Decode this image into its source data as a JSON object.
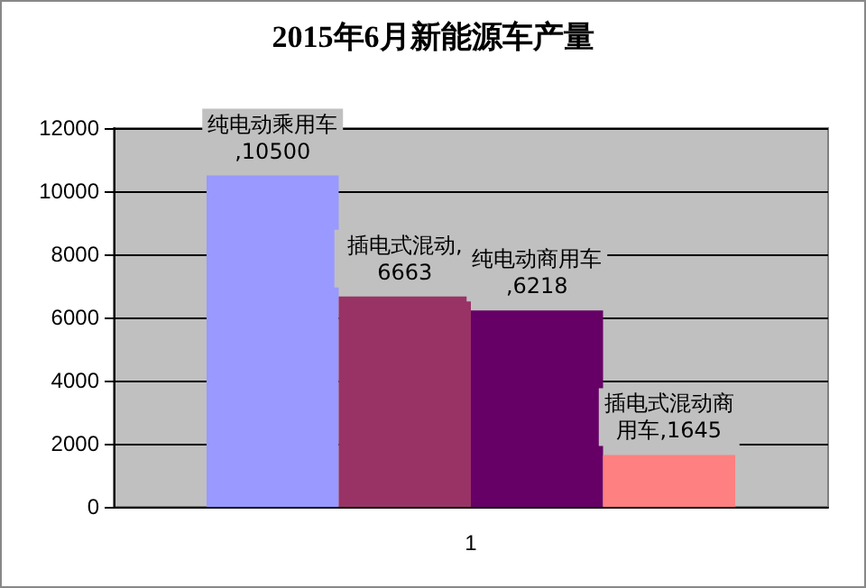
{
  "chart_data": {
    "type": "bar",
    "title": "2015年6月新能源车产量",
    "categories": [
      "1"
    ],
    "series": [
      {
        "color": "#9999ff",
        "values": [
          10500
        ],
        "value_labels": [
          "纯电动乘用车,10500"
        ]
      },
      {
        "color": "#993366",
        "values": [
          6663
        ],
        "value_labels": [
          "插电式混动,6663"
        ]
      },
      {
        "color": "#660066",
        "values": [
          6218
        ],
        "value_labels": [
          "纯电动商用车,6218"
        ]
      },
      {
        "color": "#ff8080",
        "values": [
          1645
        ],
        "value_labels": [
          "插电式混动商用车,1645"
        ]
      }
    ],
    "ylim": [
      0,
      12000
    ],
    "yticks": [
      0,
      2000,
      4000,
      6000,
      8000,
      10000,
      12000
    ],
    "grid": "y"
  }
}
